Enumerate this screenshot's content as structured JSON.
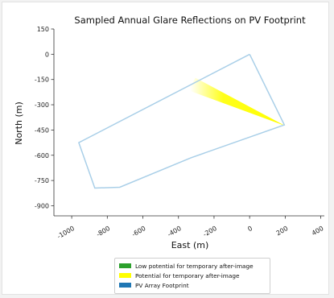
{
  "chart_data": {
    "type": "area",
    "title": "Sampled Annual Glare Reflections on PV Footprint",
    "xlabel": "East (m)",
    "ylabel": "North (m)",
    "xlim": [
      -1100,
      420
    ],
    "ylim": [
      -960,
      150
    ],
    "xticks": [
      -1000,
      -800,
      -600,
      -400,
      -200,
      0,
      200,
      400
    ],
    "xtick_labels": [
      "-1000",
      "-800",
      "-600",
      "-400",
      "-200",
      "0",
      "200",
      "400"
    ],
    "yticks": [
      150,
      0,
      -150,
      -300,
      -450,
      -600,
      -750,
      -900
    ],
    "ytick_labels": [
      "150",
      "0",
      "-150",
      "-300",
      "-450",
      "-600",
      "-750",
      "-900"
    ],
    "grid": false,
    "legend_placement": "bottom-center, below axes",
    "series": [
      {
        "name": "Low potential for temporary after-image",
        "color": "#2ca02c",
        "points": []
      },
      {
        "name": "Potential for temporary after-image",
        "color": "#ffff00",
        "points": [
          [
            200,
            -425
          ],
          [
            -330,
            -220
          ],
          [
            -335,
            -195
          ],
          [
            -320,
            -170
          ],
          [
            -305,
            -140
          ]
        ]
      },
      {
        "name": "PV Array Footprint",
        "color": "#1f77b4",
        "outline_color": "#a9cfe8",
        "points": [
          [
            0,
            0
          ],
          [
            195,
            -420
          ],
          [
            -330,
            -615
          ],
          [
            -730,
            -790
          ],
          [
            -870,
            -795
          ],
          [
            -960,
            -525
          ],
          [
            0,
            0
          ]
        ]
      }
    ]
  }
}
